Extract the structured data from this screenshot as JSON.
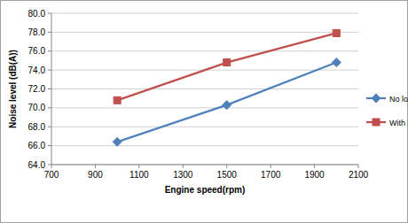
{
  "chart_data": {
    "type": "line",
    "x_label": "Engine speed(rpm)",
    "y_label": "Noise level (dB(A))",
    "x": [
      1000,
      1500,
      2000
    ],
    "series": [
      {
        "name": "No load",
        "color": "#4f81bd",
        "marker": "diamond",
        "line_style": "solid",
        "values": [
          66.4,
          70.3,
          74.8
        ]
      },
      {
        "name": "With load",
        "color": "#c0504d",
        "marker": "square",
        "line_style": "solid",
        "values": [
          70.8,
          74.8,
          77.9
        ]
      }
    ],
    "xlim": [
      700,
      2100
    ],
    "xticks": [
      700,
      900,
      1100,
      1300,
      1500,
      1700,
      1900,
      2100
    ],
    "ylim": [
      64,
      80
    ],
    "yticks": [
      {
        "value": 64,
        "label": "64.0"
      },
      {
        "value": 66,
        "label": "66.0"
      },
      {
        "value": 68,
        "label": "68.0"
      },
      {
        "value": 70,
        "label": "70.0"
      },
      {
        "value": 72,
        "label": "72.0"
      },
      {
        "value": 74,
        "label": "74.0"
      },
      {
        "value": 76,
        "label": "76.0"
      },
      {
        "value": 78,
        "label": "78.0"
      },
      {
        "value": 80,
        "label": "80.0"
      }
    ],
    "grid": true,
    "legend": "right"
  }
}
